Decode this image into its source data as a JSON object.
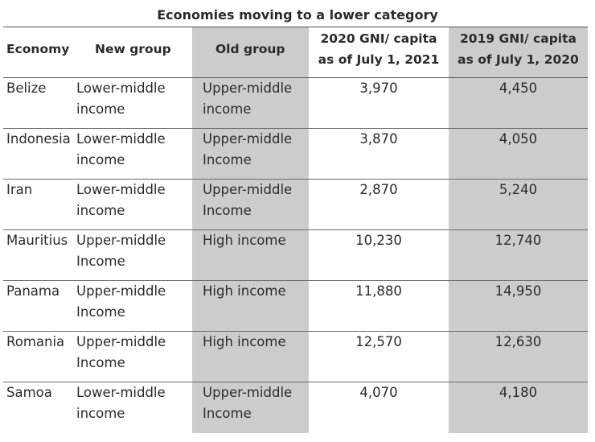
{
  "title": "Economies moving to a lower category",
  "columns": {
    "economy": "Economy",
    "new_group": "New group",
    "old_group": "Old group",
    "gni_2020_line1": "2020 GNI/ capita",
    "gni_2020_line2": "as of July 1, 2021",
    "gni_2019_line1": "2019 GNI/ capita",
    "gni_2019_line2": "as of July 1, 2020"
  },
  "rows": [
    {
      "economy": "Belize",
      "new_group": [
        "Lower-middle",
        "income"
      ],
      "old_group": [
        "Upper-middle",
        "income"
      ],
      "gni_2020": "3,970",
      "gni_2019": "4,450"
    },
    {
      "economy": "Indonesia",
      "new_group": [
        "Lower-middle",
        "income"
      ],
      "old_group": [
        "Upper-middle",
        "Income"
      ],
      "gni_2020": "3,870",
      "gni_2019": "4,050"
    },
    {
      "economy": "Iran",
      "new_group": [
        "Lower-middle",
        "income"
      ],
      "old_group": [
        "Upper-middle",
        "Income"
      ],
      "gni_2020": "2,870",
      "gni_2019": "5,240"
    },
    {
      "economy": "Mauritius",
      "new_group": [
        "Upper-middle",
        "Income"
      ],
      "old_group": [
        "High income"
      ],
      "gni_2020": "10,230",
      "gni_2019": "12,740"
    },
    {
      "economy": "Panama",
      "new_group": [
        "Upper-middle",
        "Income"
      ],
      "old_group": [
        "High income"
      ],
      "gni_2020": "11,880",
      "gni_2019": "14,950"
    },
    {
      "economy": "Romania",
      "new_group": [
        "Upper-middle",
        "Income"
      ],
      "old_group": [
        "High income"
      ],
      "gni_2020": "12,570",
      "gni_2019": "12,630"
    },
    {
      "economy": "Samoa",
      "new_group": [
        "Lower-middle",
        "income"
      ],
      "old_group": [
        "Upper-middle",
        "Income"
      ],
      "gni_2020": "4,070",
      "gni_2019": "4,180"
    }
  ]
}
